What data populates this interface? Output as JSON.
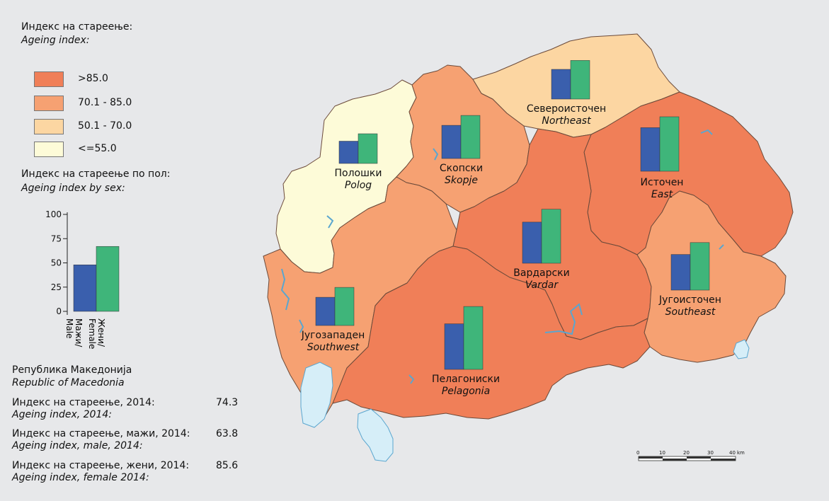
{
  "legend": {
    "title": "Индекс на стареење:",
    "title_en": "Ageing index:",
    "classes": [
      {
        "label": ">85.0",
        "color": "#f07f58"
      },
      {
        "label": "70.1 - 85.0",
        "color": "#f6a172"
      },
      {
        "label": "50.1 - 70.0",
        "color": "#fcd6a2"
      },
      {
        "label": "<=55.0",
        "color": "#fdfbd8"
      }
    ],
    "sex_title": "Индекс на стареење по пол:",
    "sex_title_en": "Ageing index by sex:",
    "sex_chart": {
      "ticks": [
        "100",
        "75",
        "50",
        "25",
        "0"
      ],
      "ylim": [
        0,
        100
      ],
      "male_value": 48,
      "female_value": 67,
      "male_label": "Мажи/\nMale",
      "female_label": "Жени/\nFemale",
      "male_color": "#3a5fad",
      "female_color": "#3fb57a"
    }
  },
  "country": {
    "name": "Република Македонија",
    "name_en": "Republic of Macedonia",
    "stats": [
      {
        "label": "Индекс на стареење, 2014:",
        "label_en": "Ageing index, 2014:",
        "value": "74.3"
      },
      {
        "label": "Индекс на стареење, мажи, 2014:",
        "label_en": "Ageing index, male, 2014:",
        "value": "63.8"
      },
      {
        "label": "Индекс на стареење, жени, 2014:",
        "label_en": "Ageing index, female 2014:",
        "value": "85.6"
      }
    ]
  },
  "regions": {
    "polog": {
      "name": "Полошки",
      "name_en": "Polog",
      "male": 45,
      "female": 60
    },
    "skopje": {
      "name": "Скопски",
      "name_en": "Skopje",
      "male": 67,
      "female": 87
    },
    "northeast": {
      "name": "Североисточен",
      "name_en": "Northeast",
      "male": 60,
      "female": 78
    },
    "east": {
      "name": "Источен",
      "name_en": "East",
      "male": 88,
      "female": 110
    },
    "vardar": {
      "name": "Вардарски",
      "name_en": "Vardar",
      "male": 83,
      "female": 109
    },
    "southeast": {
      "name": "Југоисточен",
      "name_en": "Southeast",
      "male": 72,
      "female": 96
    },
    "southwest": {
      "name": "Југозападен",
      "name_en": "Southwest",
      "male": 57,
      "female": 77
    },
    "pelagonia": {
      "name": "Пелагониски",
      "name_en": "Pelagonia",
      "male": 92,
      "female": 127
    }
  },
  "scale": {
    "ticks": [
      "0",
      "10",
      "20",
      "30",
      "40"
    ],
    "unit": "km"
  }
}
